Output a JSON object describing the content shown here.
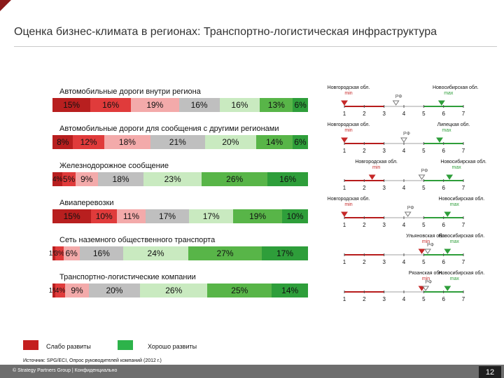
{
  "title": "Оценка бизнес-климата в регионах: Транспортно-логистическая инфраструктура",
  "colors": {
    "accent": "#8b1a1a",
    "segments": [
      "#b81f1f",
      "#e03b3b",
      "#ec6e6e",
      "#f3aaaa",
      "#bfbfbf",
      "#c9eac0",
      "#8fd17e",
      "#58b548",
      "#2e9e3a"
    ],
    "weak": "#c41f1f",
    "good": "#2db34a"
  },
  "chart_data": {
    "type": "bar",
    "orientation": "horizontal-stacked-100",
    "scale_points": [
      "1",
      "2",
      "3",
      "4",
      "5",
      "6",
      "7"
    ],
    "rows": [
      {
        "label": "Автомобильные дороги внутри региона",
        "values": [
          15,
          16,
          19,
          16,
          16,
          13,
          6
        ],
        "value_labels": [
          "15%",
          "16%",
          "19%",
          "16%",
          "16%",
          "13%",
          "6%"
        ],
        "min_region": "Новгородская обл.",
        "min_label": "min",
        "min_pos": 1.0,
        "rf_label": "РФ",
        "rf_pos": 3.6,
        "max_region": "Новосибирская обл.",
        "max_label": "max",
        "max_pos": 5.9
      },
      {
        "label": "Автомобильные дороги для сообщения с другими регионами",
        "values": [
          8,
          12,
          18,
          21,
          20,
          14,
          6
        ],
        "value_labels": [
          "8%",
          "12%",
          "18%",
          "21%",
          "20%",
          "14%",
          "6%"
        ],
        "min_region": "Новгородская обл.",
        "min_label": "min",
        "min_pos": 1.0,
        "rf_label": "РФ",
        "rf_pos": 4.0,
        "max_region": "Липецкая обл.",
        "max_label": "max",
        "max_pos": 5.8
      },
      {
        "label": "Железнодорожное сообщение",
        "values": [
          4,
          5,
          9,
          18,
          23,
          26,
          16
        ],
        "value_labels": [
          "4%",
          "5%",
          "9%",
          "18%",
          "23%",
          "26%",
          "16%"
        ],
        "min_region": "Новгородская обл.",
        "min_label": "min",
        "min_pos": 2.4,
        "rf_label": "РФ",
        "rf_pos": 4.9,
        "max_region": "Новосибирская обл.",
        "max_label": "max",
        "max_pos": 6.3
      },
      {
        "label": "Авиаперевозки",
        "values": [
          15,
          10,
          11,
          17,
          17,
          19,
          10
        ],
        "value_labels": [
          "15%",
          "10%",
          "11%",
          "17%",
          "17%",
          "19%",
          "10%"
        ],
        "min_region": "Новгородская обл.",
        "min_label": "min",
        "min_pos": 1.0,
        "rf_label": "РФ",
        "rf_pos": 4.2,
        "max_region": "Новосибирская обл.",
        "max_label": "max",
        "max_pos": 6.2
      },
      {
        "label": "Сеть наземного общественного транспорта",
        "values": [
          1,
          3,
          6,
          16,
          24,
          27,
          17
        ],
        "value_labels": [
          "1%",
          "3%",
          "6%",
          "16%",
          "24%",
          "27%",
          "17%"
        ],
        "min_region": "Ульяновская обл.",
        "min_label": "min",
        "min_pos": 4.9,
        "rf_label": "РФ",
        "rf_pos": 5.2,
        "max_region": "Новосибирская обл.",
        "max_label": "max",
        "max_pos": 6.2
      },
      {
        "label": "Транспортно-логистические компании",
        "values": [
          1,
          4,
          9,
          20,
          26,
          25,
          14
        ],
        "value_labels": [
          "1%",
          "4%",
          "9%",
          "20%",
          "26%",
          "25%",
          "14%"
        ],
        "min_region": "Рязанская обл.",
        "min_label": "min",
        "min_pos": 4.9,
        "rf_label": "РФ",
        "rf_pos": 5.1,
        "max_region": "Новосибирская обл.",
        "max_label": "max",
        "max_pos": 6.2
      }
    ]
  },
  "legend": {
    "weak_label": "Слабо развиты",
    "good_label": "Хорошо развиты"
  },
  "source": "Источник: SPG/ECI, Опрос руководителей компаний (2012 г.)",
  "footer": "© Strategy Partners Group | Конфиденциально",
  "page_number": "12"
}
